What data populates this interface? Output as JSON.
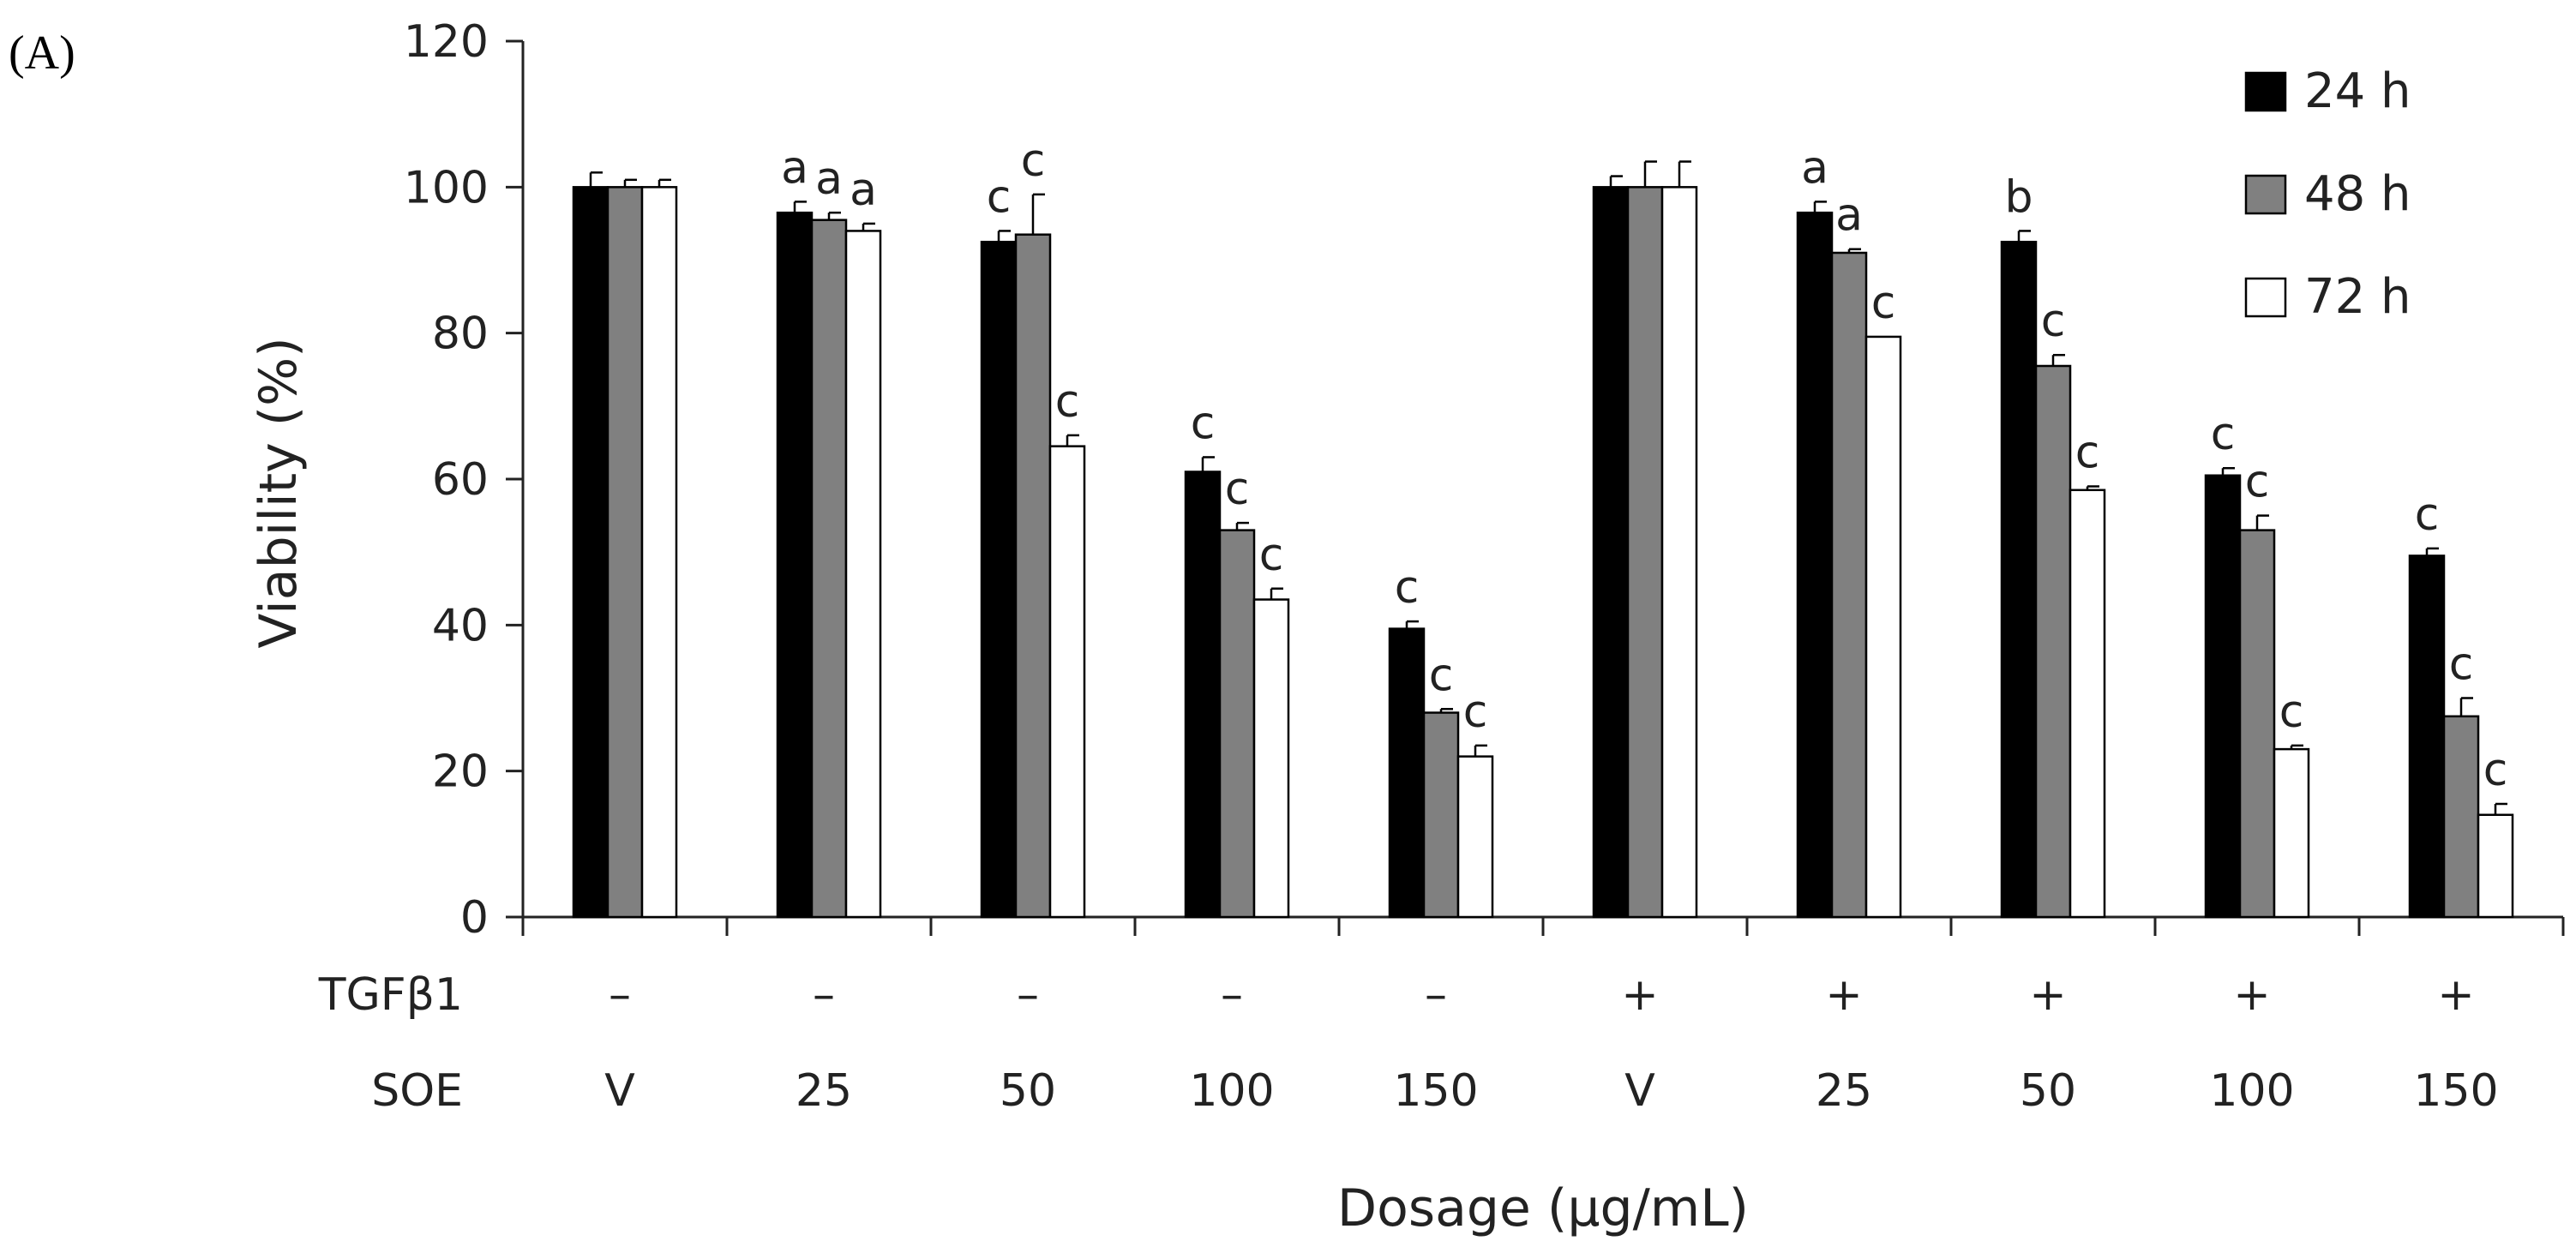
{
  "panel_label": "(A)",
  "chart_data": {
    "type": "bar",
    "title": "",
    "ylabel": "Viability (%)",
    "xlabel": "Dosage (µg/mL)",
    "ylim": [
      0,
      120
    ],
    "yticks": [
      0,
      20,
      40,
      60,
      80,
      100,
      120
    ],
    "grid": false,
    "legend_position": "top-right",
    "categories": [
      "V",
      "25",
      "50",
      "100",
      "150",
      "V",
      "25",
      "50",
      "100",
      "150"
    ],
    "row_labels": {
      "tgf": {
        "name": "TGFβ1",
        "values": [
          "–",
          "–",
          "–",
          "–",
          "–",
          "+",
          "+",
          "+",
          "+",
          "+"
        ]
      },
      "soe": {
        "name": "SOE",
        "values": [
          "V",
          "25",
          "50",
          "100",
          "150",
          "V",
          "25",
          "50",
          "100",
          "150"
        ]
      }
    },
    "series": [
      {
        "name": "24 h",
        "color": "#000000",
        "values": [
          100,
          96.5,
          92.5,
          61,
          39.5,
          100,
          96.5,
          92.5,
          60.5,
          49.5
        ],
        "errors": [
          2,
          1.5,
          1.5,
          2,
          1,
          1.5,
          1.5,
          1.5,
          1,
          1
        ],
        "sig": [
          "",
          "a",
          "c",
          "c",
          "c",
          "",
          "a",
          "b",
          "c",
          "c"
        ]
      },
      {
        "name": "48 h",
        "color": "#808080",
        "values": [
          100,
          95.5,
          93.5,
          53,
          28,
          100,
          91,
          75.5,
          53,
          27.5
        ],
        "errors": [
          1,
          1,
          5.5,
          1,
          0.5,
          3.5,
          0.5,
          1.5,
          2,
          2.5
        ],
        "sig": [
          "",
          "a",
          "c",
          "c",
          "c",
          "",
          "a",
          "c",
          "c",
          "c"
        ]
      },
      {
        "name": "72 h",
        "color": "#ffffff",
        "values": [
          100,
          94,
          64.5,
          43.5,
          22,
          100,
          79.5,
          58.5,
          23,
          14
        ],
        "errors": [
          1,
          1,
          1.5,
          1.5,
          1.5,
          3.5,
          0,
          0.5,
          0.5,
          1.5
        ],
        "sig": [
          "",
          "a",
          "c",
          "c",
          "c",
          "",
          "c",
          "c",
          "c",
          "c"
        ]
      }
    ]
  }
}
